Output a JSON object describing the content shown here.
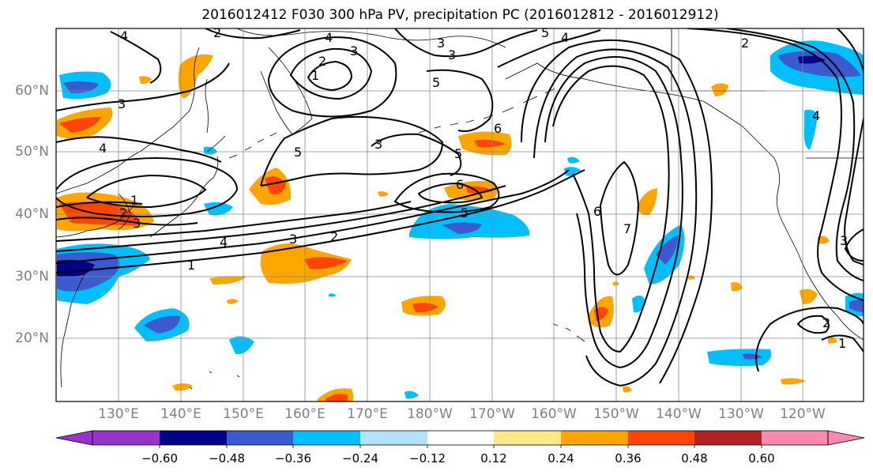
{
  "title": "2016012412 F030 300 hPa PV, precipitation PC (2016012812 - 2016012912)",
  "lat_labels": [
    "60°N",
    "50°N",
    "40°N",
    "30°N",
    "20°N"
  ],
  "lon_labels": [
    "130°E",
    "140°E",
    "150°E",
    "160°E",
    "170°E",
    "180°W",
    "170°W",
    "160°W",
    "150°W",
    "140°W",
    "130°W",
    "120°W"
  ],
  "colorbar": {
    "ticks": [
      "−0.60",
      "−0.48",
      "−0.36",
      "−0.24",
      "−0.12",
      "0.12",
      "0.24",
      "0.36",
      "0.48",
      "0.60"
    ],
    "colors": [
      "#9932cc",
      "#00008b",
      "#3a5bd0",
      "#00bfff",
      "#b2e2ff",
      "#ffffff",
      "#ffe88a",
      "#ffa500",
      "#ff4500",
      "#b22222",
      "#ff88b0"
    ]
  },
  "contour_labels": [
    "4",
    "2",
    "4",
    "3",
    "5",
    "4",
    "2",
    "3",
    "1",
    "5",
    "3",
    "3",
    "4",
    "5",
    "3",
    "5",
    "6",
    "5",
    "6",
    "1",
    "2",
    "3",
    "4",
    "3",
    "2",
    "1",
    "7",
    "6",
    "4",
    "2",
    "3",
    "2",
    "1"
  ],
  "colors": {
    "negative_dark": "#00008b",
    "negative_mid": "#3a5bd0",
    "negative_light": "#00bfff",
    "positive_light": "#ffe88a",
    "positive_mid": "#ffa500",
    "positive_strong": "#ff4500"
  }
}
